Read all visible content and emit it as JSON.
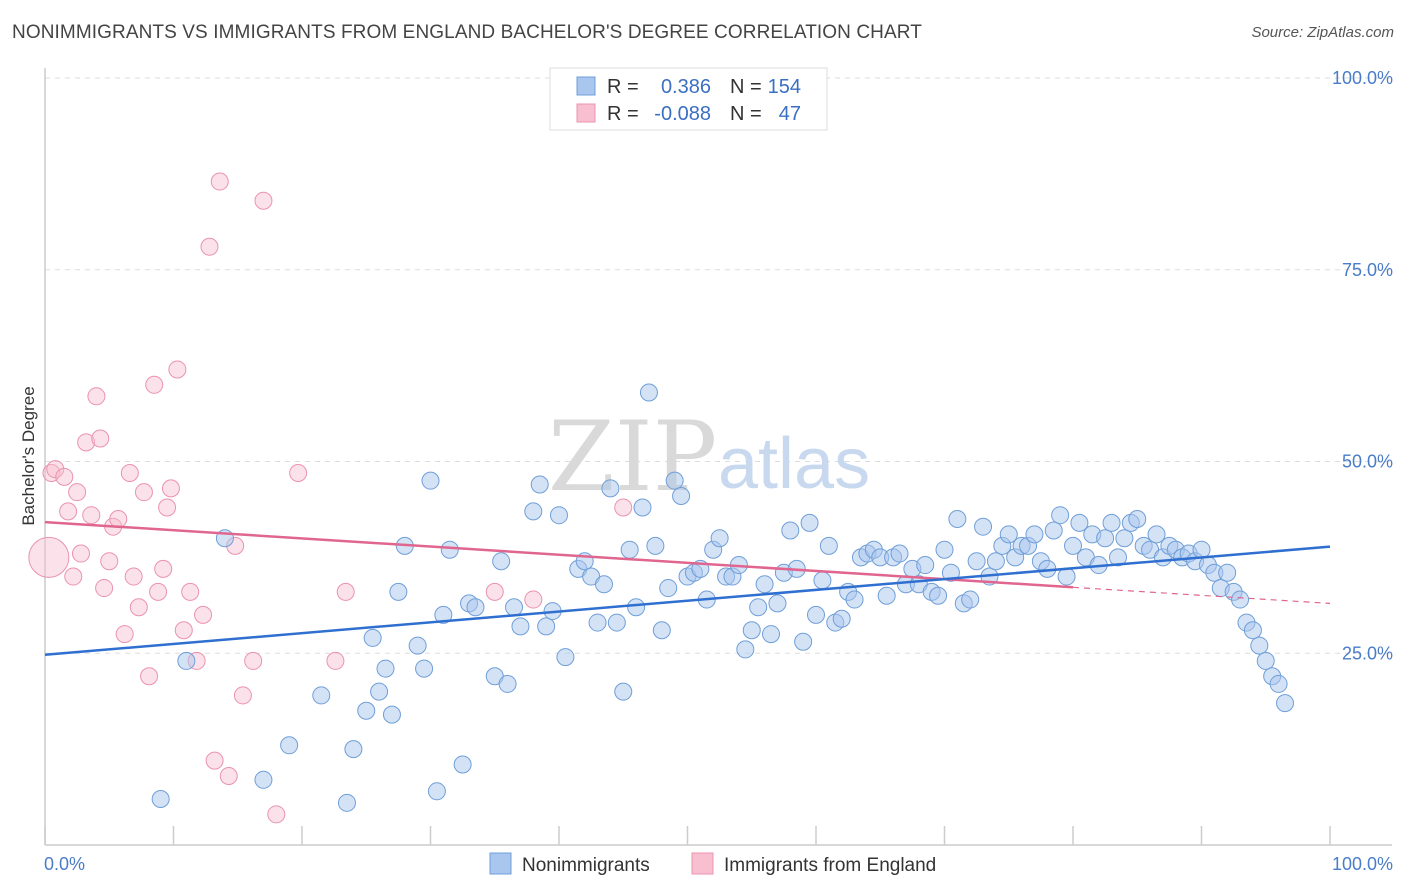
{
  "header": {
    "title": "NONIMMIGRANTS VS IMMIGRANTS FROM ENGLAND BACHELOR'S DEGREE CORRELATION CHART",
    "source": "Source: ZipAtlas.com"
  },
  "watermark": {
    "zip": "ZIP",
    "atlas": "atlas"
  },
  "legend": {
    "r_label": "R =",
    "n_label": "N =",
    "series": [
      {
        "r": "0.386",
        "n": "154"
      },
      {
        "r": "-0.088",
        "n": "47"
      }
    ]
  },
  "colors": {
    "blue_fill": "#a9c6ee",
    "blue_stroke": "#6f9fd8",
    "blue_line": "#2f6fd0",
    "pink_fill": "#f7bfd0",
    "pink_stroke": "#eb93ae",
    "pink_line": "#e0668f",
    "tick_label": "#4a7cc9"
  },
  "chart_data": {
    "type": "scatter",
    "title": "NONIMMIGRANTS VS IMMIGRANTS FROM ENGLAND BACHELOR'S DEGREE CORRELATION CHART",
    "xlabel": "",
    "ylabel": "Bachelor's Degree",
    "xlim": [
      0,
      100
    ],
    "ylim": [
      0,
      100
    ],
    "x_tick_labels": [
      "0.0%",
      "100.0%"
    ],
    "y_tick_labels": [
      "25.0%",
      "50.0%",
      "75.0%",
      "100.0%"
    ],
    "y_ticks": [
      25,
      50,
      75,
      100
    ],
    "grid": true,
    "legend_position": "top-center",
    "series": [
      {
        "name": "Nonimmigrants",
        "trend": [
          [
            0,
            24.8
          ],
          [
            100,
            38.9
          ]
        ],
        "points": [
          [
            9,
            6
          ],
          [
            11,
            24
          ],
          [
            14,
            40
          ],
          [
            17,
            8.5
          ],
          [
            19,
            13
          ],
          [
            21.5,
            19.5
          ],
          [
            23.5,
            5.5
          ],
          [
            24,
            12.5
          ],
          [
            25,
            17.5
          ],
          [
            25.5,
            27
          ],
          [
            26,
            20
          ],
          [
            26.5,
            23
          ],
          [
            27,
            17
          ],
          [
            27.5,
            33
          ],
          [
            28,
            39
          ],
          [
            29,
            26
          ],
          [
            29.5,
            23
          ],
          [
            30,
            47.5
          ],
          [
            30.5,
            7
          ],
          [
            31,
            30
          ],
          [
            31.5,
            38.5
          ],
          [
            32.5,
            10.5
          ],
          [
            33,
            31.5
          ],
          [
            33.5,
            31
          ],
          [
            35,
            22
          ],
          [
            35.5,
            37
          ],
          [
            36,
            21
          ],
          [
            36.5,
            31
          ],
          [
            37,
            28.5
          ],
          [
            38,
            43.5
          ],
          [
            38.5,
            47
          ],
          [
            39,
            28.5
          ],
          [
            39.5,
            30.5
          ],
          [
            40,
            43
          ],
          [
            40.5,
            24.5
          ],
          [
            41.5,
            36
          ],
          [
            42,
            37
          ],
          [
            42.5,
            35
          ],
          [
            43,
            29
          ],
          [
            43.5,
            34
          ],
          [
            44,
            46.5
          ],
          [
            44.5,
            29
          ],
          [
            45,
            20
          ],
          [
            45.5,
            38.5
          ],
          [
            46,
            31
          ],
          [
            46.5,
            44
          ],
          [
            47,
            59
          ],
          [
            47.5,
            39
          ],
          [
            48,
            28
          ],
          [
            48.5,
            33.5
          ],
          [
            49,
            47.5
          ],
          [
            49.5,
            45.5
          ],
          [
            50,
            35
          ],
          [
            50.5,
            35.5
          ],
          [
            51,
            36
          ],
          [
            51.5,
            32
          ],
          [
            52,
            38.5
          ],
          [
            52.5,
            40
          ],
          [
            53,
            35
          ],
          [
            53.5,
            35
          ],
          [
            54,
            36.5
          ],
          [
            54.5,
            25.5
          ],
          [
            55,
            28
          ],
          [
            55.5,
            31
          ],
          [
            56,
            34
          ],
          [
            56.5,
            27.5
          ],
          [
            57,
            31.5
          ],
          [
            57.5,
            35.5
          ],
          [
            58,
            41
          ],
          [
            58.5,
            36
          ],
          [
            59,
            26.5
          ],
          [
            59.5,
            42
          ],
          [
            60,
            30
          ],
          [
            60.5,
            34.5
          ],
          [
            61,
            39
          ],
          [
            61.5,
            29
          ],
          [
            62,
            29.5
          ],
          [
            62.5,
            33
          ],
          [
            63,
            32
          ],
          [
            63.5,
            37.5
          ],
          [
            64,
            38
          ],
          [
            64.5,
            38.5
          ],
          [
            65,
            37.5
          ],
          [
            65.5,
            32.5
          ],
          [
            66,
            37.5
          ],
          [
            66.5,
            38
          ],
          [
            67,
            34
          ],
          [
            67.5,
            36
          ],
          [
            68,
            34
          ],
          [
            68.5,
            36.5
          ],
          [
            69,
            33
          ],
          [
            69.5,
            32.5
          ],
          [
            70,
            38.5
          ],
          [
            70.5,
            35.5
          ],
          [
            71,
            42.5
          ],
          [
            71.5,
            31.5
          ],
          [
            72,
            32
          ],
          [
            72.5,
            37
          ],
          [
            73,
            41.5
          ],
          [
            73.5,
            35
          ],
          [
            74,
            37
          ],
          [
            74.5,
            39
          ],
          [
            75,
            40.5
          ],
          [
            75.5,
            37.5
          ],
          [
            76,
            39
          ],
          [
            76.5,
            39
          ],
          [
            77,
            40.5
          ],
          [
            77.5,
            37
          ],
          [
            78,
            36
          ],
          [
            78.5,
            41
          ],
          [
            79,
            43
          ],
          [
            79.5,
            35
          ],
          [
            80,
            39
          ],
          [
            80.5,
            42
          ],
          [
            81,
            37.5
          ],
          [
            81.5,
            40.5
          ],
          [
            82,
            36.5
          ],
          [
            82.5,
            40
          ],
          [
            83,
            42
          ],
          [
            83.5,
            37.5
          ],
          [
            84,
            40
          ],
          [
            84.5,
            42
          ],
          [
            85,
            42.5
          ],
          [
            85.5,
            39
          ],
          [
            86,
            38.5
          ],
          [
            86.5,
            40.5
          ],
          [
            87,
            37.5
          ],
          [
            87.5,
            39
          ],
          [
            88,
            38.5
          ],
          [
            88.5,
            37.5
          ],
          [
            89,
            38
          ],
          [
            89.5,
            37
          ],
          [
            90,
            38.5
          ],
          [
            90.5,
            36.5
          ],
          [
            91,
            35.5
          ],
          [
            91.5,
            33.5
          ],
          [
            92,
            35.5
          ],
          [
            92.5,
            33
          ],
          [
            93,
            32
          ],
          [
            93.5,
            29
          ],
          [
            94,
            28
          ],
          [
            94.5,
            26
          ],
          [
            95,
            24
          ],
          [
            95.5,
            22
          ],
          [
            96,
            21
          ],
          [
            96.5,
            18.5
          ]
        ]
      },
      {
        "name": "Immigrants from England",
        "trend": [
          [
            0,
            42.1
          ],
          [
            80,
            33.6
          ]
        ],
        "trend_dashed": [
          [
            80,
            33.6
          ],
          [
            100,
            31.5
          ]
        ],
        "points": [
          [
            0.3,
            37.5,
            "large"
          ],
          [
            0.5,
            48.5
          ],
          [
            0.8,
            49
          ],
          [
            1.5,
            48
          ],
          [
            1.8,
            43.5
          ],
          [
            2.2,
            35
          ],
          [
            2.5,
            46
          ],
          [
            2.8,
            38
          ],
          [
            3.2,
            52.5
          ],
          [
            3.6,
            43
          ],
          [
            4,
            58.5
          ],
          [
            4.3,
            53
          ],
          [
            4.6,
            33.5
          ],
          [
            5,
            37
          ],
          [
            5.3,
            41.5
          ],
          [
            5.7,
            42.5
          ],
          [
            6.2,
            27.5
          ],
          [
            6.6,
            48.5
          ],
          [
            6.9,
            35
          ],
          [
            7.3,
            31
          ],
          [
            7.7,
            46
          ],
          [
            8.1,
            22
          ],
          [
            8.5,
            60
          ],
          [
            8.8,
            33
          ],
          [
            9.2,
            36
          ],
          [
            9.5,
            44
          ],
          [
            9.8,
            46.5
          ],
          [
            10.3,
            62
          ],
          [
            10.8,
            28
          ],
          [
            11.3,
            33
          ],
          [
            11.8,
            24
          ],
          [
            12.3,
            30
          ],
          [
            12.8,
            78
          ],
          [
            13.2,
            11
          ],
          [
            13.6,
            86.5
          ],
          [
            14.3,
            9
          ],
          [
            14.8,
            39
          ],
          [
            15.4,
            19.5
          ],
          [
            16.2,
            24
          ],
          [
            17,
            84
          ],
          [
            18,
            4
          ],
          [
            19.7,
            48.5
          ],
          [
            22.6,
            24
          ],
          [
            23.4,
            33
          ],
          [
            35,
            33
          ],
          [
            38,
            32
          ],
          [
            45,
            44
          ]
        ]
      }
    ]
  },
  "bottom_legend": [
    {
      "label": "Nonimmigrants"
    },
    {
      "label": "Immigrants from England"
    }
  ]
}
